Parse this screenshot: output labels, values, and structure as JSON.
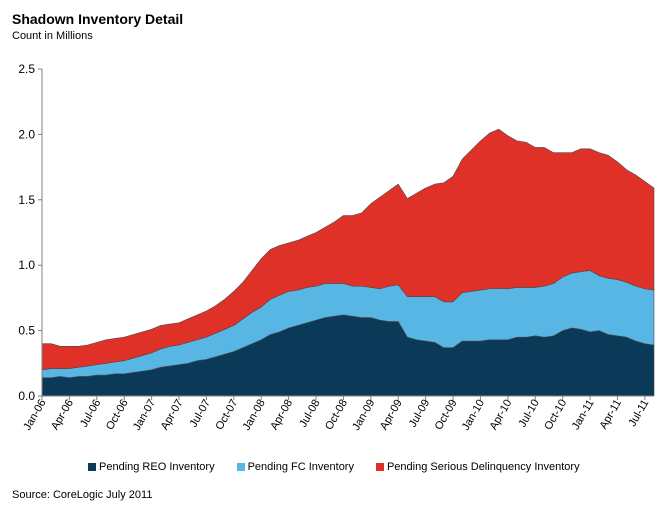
{
  "chart_data": {
    "type": "area",
    "stacked": true,
    "title": "Shadown Inventory Detail",
    "subtitle": "Count in Millions",
    "ylim": [
      0,
      2.5
    ],
    "yticks": [
      "0.0",
      "0.5",
      "1.0",
      "1.5",
      "2.0",
      "2.5"
    ],
    "ytick_values": [
      0,
      0.5,
      1.0,
      1.5,
      2.0,
      2.5
    ],
    "xtick_labels": [
      "Jan-06",
      "Apr-06",
      "Jul-06",
      "Oct-06",
      "Jan-07",
      "Apr-07",
      "Jul-07",
      "Oct-07",
      "Jan-08",
      "Apr-08",
      "Jul-08",
      "Oct-08",
      "Jan-09",
      "Apr-09",
      "Jul-09",
      "Oct-09",
      "Jan-10",
      "Apr-10",
      "Jul-10",
      "Oct-10",
      "Jan-11",
      "Apr-11",
      "Jul-11"
    ],
    "legend_position": "bottom",
    "series": [
      {
        "name": "Pending REO Inventory",
        "color": "#0a3a57",
        "values": [
          0.14,
          0.14,
          0.15,
          0.14,
          0.15,
          0.15,
          0.16,
          0.16,
          0.17,
          0.17,
          0.18,
          0.19,
          0.2,
          0.22,
          0.23,
          0.24,
          0.25,
          0.27,
          0.28,
          0.3,
          0.32,
          0.34,
          0.37,
          0.4,
          0.43,
          0.47,
          0.49,
          0.52,
          0.54,
          0.56,
          0.58,
          0.6,
          0.61,
          0.62,
          0.61,
          0.6,
          0.6,
          0.58,
          0.57,
          0.57,
          0.45,
          0.43,
          0.42,
          0.41,
          0.37,
          0.37,
          0.42,
          0.42,
          0.42,
          0.43,
          0.43,
          0.43,
          0.45,
          0.45,
          0.46,
          0.45,
          0.46,
          0.5,
          0.52,
          0.51,
          0.49,
          0.5,
          0.47,
          0.46,
          0.45,
          0.42,
          0.4,
          0.39
        ]
      },
      {
        "name": "Pending FC Inventory",
        "color": "#58b6e4",
        "values": [
          0.06,
          0.07,
          0.06,
          0.07,
          0.07,
          0.08,
          0.08,
          0.09,
          0.09,
          0.1,
          0.11,
          0.12,
          0.13,
          0.14,
          0.15,
          0.15,
          0.16,
          0.16,
          0.17,
          0.18,
          0.19,
          0.2,
          0.22,
          0.24,
          0.25,
          0.27,
          0.28,
          0.28,
          0.27,
          0.27,
          0.26,
          0.26,
          0.25,
          0.24,
          0.23,
          0.24,
          0.23,
          0.24,
          0.27,
          0.28,
          0.31,
          0.33,
          0.34,
          0.35,
          0.35,
          0.35,
          0.37,
          0.38,
          0.39,
          0.39,
          0.39,
          0.39,
          0.38,
          0.38,
          0.37,
          0.39,
          0.4,
          0.41,
          0.42,
          0.44,
          0.47,
          0.42,
          0.43,
          0.43,
          0.42,
          0.42,
          0.42,
          0.42
        ]
      },
      {
        "name": "Pending Serious Delinquency Inventory",
        "color": "#e03128",
        "values": [
          0.2,
          0.19,
          0.17,
          0.17,
          0.16,
          0.16,
          0.17,
          0.18,
          0.18,
          0.18,
          0.18,
          0.18,
          0.18,
          0.18,
          0.17,
          0.17,
          0.18,
          0.19,
          0.2,
          0.21,
          0.23,
          0.26,
          0.28,
          0.32,
          0.37,
          0.38,
          0.38,
          0.37,
          0.38,
          0.39,
          0.41,
          0.43,
          0.47,
          0.52,
          0.54,
          0.56,
          0.64,
          0.7,
          0.73,
          0.77,
          0.75,
          0.79,
          0.83,
          0.86,
          0.91,
          0.96,
          1.02,
          1.08,
          1.14,
          1.19,
          1.22,
          1.17,
          1.12,
          1.11,
          1.07,
          1.06,
          1.0,
          0.95,
          0.92,
          0.94,
          0.93,
          0.94,
          0.94,
          0.9,
          0.86,
          0.85,
          0.82,
          0.78
        ]
      }
    ]
  },
  "legend": {
    "items": [
      "Pending REO Inventory",
      "Pending FC Inventory",
      "Pending Serious Delinquency Inventory"
    ]
  },
  "source": "Source: CoreLogic July 2011"
}
